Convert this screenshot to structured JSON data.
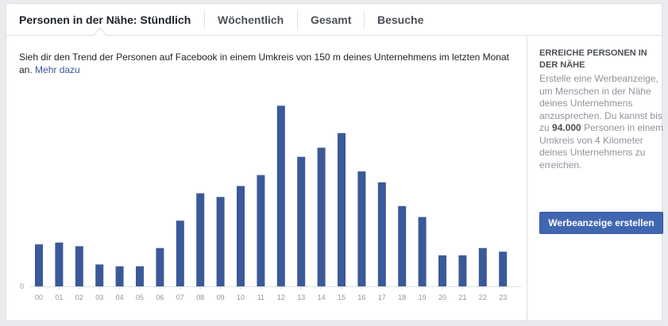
{
  "tabs": [
    {
      "label": "Personen in der Nähe: Stündlich",
      "active": true
    },
    {
      "label": "Wöchentlich",
      "active": false
    },
    {
      "label": "Gesamt",
      "active": false
    },
    {
      "label": "Besuche",
      "active": false
    }
  ],
  "description": {
    "text": "Sieh dir den Trend der Personen auf Facebook in einem Umkreis von 150 m deines Unternehmens im letzten Monat an.",
    "link": "Mehr dazu"
  },
  "sidebar": {
    "title": "ERREICHE PERSONEN IN DER NÄHE",
    "text_before": "Erstelle eine Werbeanzeige, um Menschen in der Nähe deines Unternehmens anzusprechen. Du kannst bis zu",
    "highlight": "94.000",
    "text_after": "Personen in einem Umkreis von 4 Kilometer deines Unternehmens zu erreichen.",
    "button": "Werbeanzeige erstellen"
  },
  "chart_data": {
    "type": "bar",
    "categories": [
      "00",
      "01",
      "02",
      "03",
      "04",
      "05",
      "06",
      "07",
      "08",
      "09",
      "10",
      "11",
      "12",
      "13",
      "14",
      "15",
      "16",
      "17",
      "18",
      "19",
      "20",
      "21",
      "22",
      "23"
    ],
    "values": [
      23,
      24,
      22,
      12,
      11,
      11,
      21,
      36,
      51,
      49,
      55,
      61,
      99,
      71,
      76,
      84,
      63,
      57,
      44,
      38,
      17,
      17,
      21,
      19
    ],
    "y_tick_labels": [
      "0"
    ],
    "ylim": [
      0,
      100
    ],
    "color": "#3b5998",
    "grid": false
  }
}
